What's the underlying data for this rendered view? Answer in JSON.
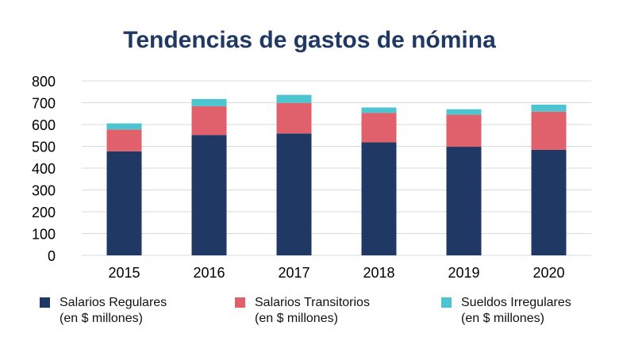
{
  "chart_data": {
    "type": "bar",
    "stacked": true,
    "title": "Tendencias de gastos de nómina",
    "xlabel": "",
    "ylabel": "",
    "categories": [
      "2015",
      "2016",
      "2017",
      "2018",
      "2019",
      "2020"
    ],
    "ylim": [
      0,
      800
    ],
    "yticks": [
      0,
      100,
      200,
      300,
      400,
      500,
      600,
      700,
      800
    ],
    "grid": true,
    "legend_position": "bottom",
    "series": [
      {
        "name": "Salarios Regulares\n(en $ millones)",
        "color": "#1f3864",
        "values": [
          477,
          552,
          559,
          518,
          498,
          484
        ]
      },
      {
        "name": "Salarios Transitorios\n(en $ millones)",
        "color": "#e0606b",
        "values": [
          100,
          132,
          140,
          135,
          147,
          175
        ]
      },
      {
        "name": "Sueldos Irregulares\n(en $ millones)",
        "color": "#4dc5d1",
        "values": [
          28,
          33,
          37,
          25,
          25,
          32
        ]
      }
    ]
  }
}
